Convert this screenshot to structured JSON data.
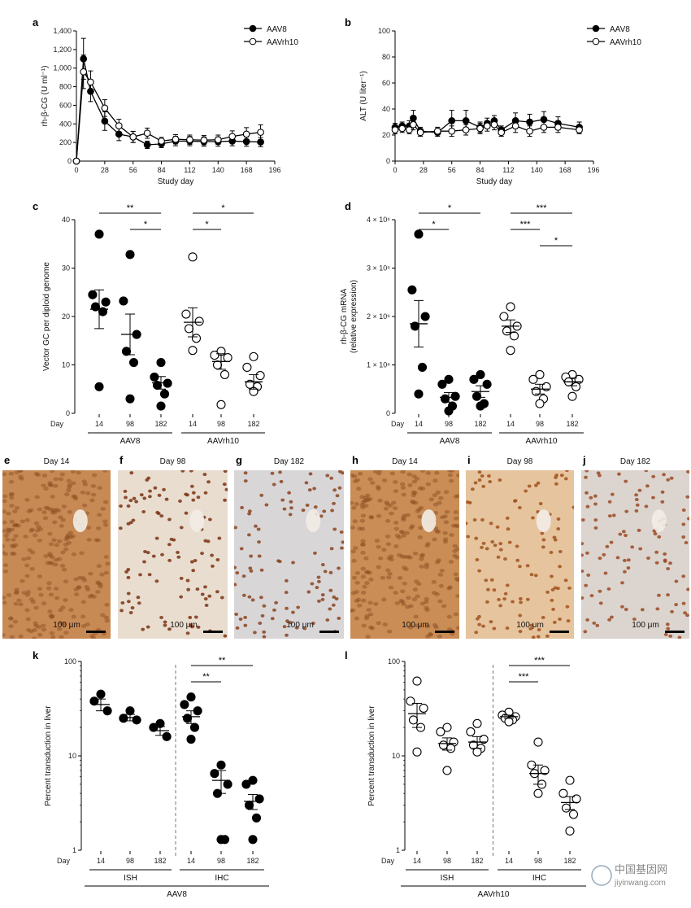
{
  "chart_data": [
    {
      "panel": "a",
      "type": "line",
      "ylabel": "rh-β-CG (U ml⁻¹)",
      "xlabel": "Study day",
      "xlim": [
        0,
        196
      ],
      "ylim": [
        0,
        1400
      ],
      "xticks": [
        0,
        28,
        56,
        84,
        112,
        140,
        168,
        196
      ],
      "yticks": [
        0,
        200,
        400,
        600,
        800,
        1000,
        1200,
        1400
      ],
      "ytick_labels": [
        "0",
        "200",
        "400",
        "600",
        "800",
        "1,000",
        "1,200",
        "1,400"
      ],
      "legend_position": "top-right",
      "series": [
        {
          "name": "AAV8",
          "marker": "filled",
          "x": [
            0,
            7,
            14,
            28,
            42,
            56,
            70,
            84,
            98,
            112,
            126,
            140,
            154,
            168,
            182
          ],
          "y": [
            0,
            1100,
            750,
            430,
            290,
            260,
            175,
            185,
            215,
            215,
            210,
            210,
            215,
            210,
            205
          ],
          "err": [
            0,
            220,
            110,
            100,
            70,
            60,
            40,
            40,
            50,
            50,
            50,
            50,
            50,
            50,
            50
          ]
        },
        {
          "name": "AAVrh10",
          "marker": "open",
          "x": [
            0,
            7,
            14,
            28,
            42,
            56,
            70,
            84,
            98,
            112,
            126,
            140,
            154,
            168,
            182
          ],
          "y": [
            0,
            960,
            850,
            570,
            380,
            260,
            300,
            215,
            235,
            230,
            225,
            230,
            265,
            290,
            310
          ],
          "err": [
            0,
            180,
            120,
            90,
            70,
            60,
            55,
            40,
            50,
            50,
            50,
            50,
            60,
            70,
            80
          ]
        }
      ]
    },
    {
      "panel": "b",
      "type": "line",
      "ylabel": "ALT (U liter⁻¹)",
      "xlabel": "Study day",
      "xlim": [
        0,
        196
      ],
      "ylim": [
        0,
        100
      ],
      "xticks": [
        0,
        28,
        56,
        84,
        112,
        140,
        168,
        196
      ],
      "yticks": [
        0,
        20,
        40,
        60,
        80,
        100
      ],
      "legend_position": "top-right",
      "series": [
        {
          "name": "AAV8",
          "marker": "filled",
          "x": [
            0,
            7,
            14,
            18,
            25,
            42,
            56,
            70,
            84,
            91,
            98,
            105,
            119,
            133,
            147,
            161,
            182
          ],
          "y": [
            26,
            27,
            27,
            33,
            23,
            22,
            31,
            31,
            26,
            29,
            31,
            24,
            31,
            30,
            32,
            29,
            26
          ],
          "err": [
            3,
            3,
            4,
            6,
            3,
            3,
            8,
            8,
            4,
            4,
            4,
            3,
            6,
            6,
            6,
            5,
            4
          ]
        },
        {
          "name": "AAVrh10",
          "marker": "open",
          "x": [
            0,
            7,
            14,
            18,
            25,
            42,
            56,
            70,
            84,
            91,
            98,
            105,
            119,
            133,
            147,
            161,
            182
          ],
          "y": [
            24,
            25,
            24,
            28,
            22,
            23,
            23,
            24,
            25,
            27,
            28,
            22,
            27,
            23,
            26,
            26,
            24
          ],
          "err": [
            3,
            3,
            3,
            4,
            3,
            3,
            4,
            4,
            4,
            4,
            4,
            3,
            5,
            4,
            4,
            4,
            3
          ]
        }
      ]
    },
    {
      "panel": "c",
      "type": "scatter",
      "ylabel": "Vector GC per diploid genome",
      "ylim": [
        0,
        40
      ],
      "yticks": [
        0,
        10,
        20,
        30,
        40
      ],
      "row_label": "Day",
      "categories": [
        "14",
        "98",
        "182",
        "14",
        "98",
        "182"
      ],
      "groups": [
        {
          "label": "AAV8",
          "from": 0,
          "to": 2
        },
        {
          "label": "AAVrh10",
          "from": 3,
          "to": 5
        }
      ],
      "filled": [
        true,
        true,
        true,
        false,
        false,
        false
      ],
      "points": [
        [
          37,
          24.5,
          23,
          22,
          21,
          5.5
        ],
        [
          32.8,
          23.2,
          16.3,
          12.8,
          10.5,
          3.0
        ],
        [
          10.5,
          7.5,
          6.2,
          5.8,
          4.0,
          1.5
        ],
        [
          32.3,
          20.5,
          19.0,
          17.5,
          15.5,
          13.0
        ],
        [
          12.8,
          12.0,
          11.5,
          10.0,
          8.0,
          1.8
        ],
        [
          11.7,
          9.5,
          7.8,
          6.0,
          5.5,
          4.5
        ]
      ],
      "mean": [
        21.5,
        16.3,
        6.3,
        18.8,
        10.7,
        6.5
      ],
      "sem": [
        4.0,
        4.2,
        1.3,
        3.0,
        1.6,
        1.5
      ],
      "significance": [
        {
          "from": 0,
          "to": 2,
          "label": "**",
          "level": 0
        },
        {
          "from": 1,
          "to": 2,
          "label": "*",
          "level": 1
        },
        {
          "from": 3,
          "to": 5,
          "label": "*",
          "level": 0
        },
        {
          "from": 3,
          "to": 4,
          "label": "*",
          "level": 1
        }
      ]
    },
    {
      "panel": "d",
      "type": "scatter",
      "ylabel": "rh-β-CG mRNA\n(relative expression)",
      "ylim": [
        0,
        4000000
      ],
      "yticks": [
        0,
        1000000,
        2000000,
        3000000,
        4000000
      ],
      "ytick_labels": [
        "0",
        "1 × 10⁶",
        "2 × 10⁶",
        "3 × 10⁶",
        "4 × 10⁶"
      ],
      "row_label": "Day",
      "categories": [
        "14",
        "98",
        "182",
        "14",
        "98",
        "182"
      ],
      "groups": [
        {
          "label": "AAV8",
          "from": 0,
          "to": 2
        },
        {
          "label": "AAVrh10",
          "from": 3,
          "to": 5
        }
      ],
      "filled": [
        true,
        true,
        true,
        false,
        false,
        false
      ],
      "points": [
        [
          3700000,
          2550000,
          2000000,
          1800000,
          950000,
          400000
        ],
        [
          700000,
          600000,
          350000,
          300000,
          150000,
          50000
        ],
        [
          800000,
          700000,
          600000,
          350000,
          200000,
          150000
        ],
        [
          2200000,
          2000000,
          1800000,
          1700000,
          1600000,
          1300000
        ],
        [
          800000,
          700000,
          550000,
          450000,
          300000,
          200000
        ],
        [
          800000,
          750000,
          700000,
          650000,
          550000,
          350000
        ]
      ],
      "mean": [
        1850000,
        330000,
        450000,
        1800000,
        500000,
        650000
      ],
      "sem": [
        480000,
        100000,
        120000,
        130000,
        100000,
        80000
      ],
      "significance": [
        {
          "from": 0,
          "to": 2,
          "label": "*",
          "level": 0
        },
        {
          "from": 0,
          "to": 1,
          "label": "*",
          "level": 1
        },
        {
          "from": 3,
          "to": 5,
          "label": "***",
          "level": 0
        },
        {
          "from": 3,
          "to": 4,
          "label": "***",
          "level": 1
        },
        {
          "from": 4,
          "to": 5,
          "label": "*",
          "level": 2
        }
      ]
    },
    {
      "panel": "k",
      "type": "scatter",
      "ylabel": "Percent transduction in liver",
      "yscale": "log",
      "ylim": [
        1,
        100
      ],
      "yticks": [
        1,
        10,
        100
      ],
      "row_label": "Day",
      "categories": [
        "14",
        "98",
        "182",
        "14",
        "98",
        "182"
      ],
      "subgroups": [
        {
          "label": "ISH",
          "from": 0,
          "to": 2
        },
        {
          "label": "IHC",
          "from": 3,
          "to": 5
        }
      ],
      "group_label": "AAV8",
      "divider_after": 2,
      "filled": [
        true,
        true,
        true,
        true,
        true,
        true
      ],
      "points": [
        [
          45,
          38,
          30
        ],
        [
          30,
          25,
          24
        ],
        [
          22,
          20,
          16
        ],
        [
          42,
          35,
          30,
          25,
          20,
          15
        ],
        [
          8,
          6.5,
          5,
          4,
          1.3,
          1.3
        ],
        [
          5.5,
          5,
          3.5,
          3,
          2.2,
          1.3
        ]
      ],
      "mean": [
        35,
        25.5,
        18.5,
        26,
        5.5,
        3.3
      ],
      "sem": [
        5,
        2,
        2,
        4,
        1.5,
        0.6
      ],
      "significance": [
        {
          "from": 3,
          "to": 5,
          "label": "**",
          "level": 0
        },
        {
          "from": 3,
          "to": 4,
          "label": "**",
          "level": 1
        }
      ]
    },
    {
      "panel": "l",
      "type": "scatter",
      "ylabel": "Percent transduction in liver",
      "yscale": "log",
      "ylim": [
        1,
        100
      ],
      "yticks": [
        1,
        10,
        100
      ],
      "row_label": "Day",
      "categories": [
        "14",
        "98",
        "182",
        "14",
        "98",
        "182"
      ],
      "subgroups": [
        {
          "label": "ISH",
          "from": 0,
          "to": 2
        },
        {
          "label": "IHC",
          "from": 3,
          "to": 5
        }
      ],
      "group_label": "AAVrh10",
      "divider_after": 2,
      "filled": [
        false,
        false,
        false,
        false,
        false,
        false
      ],
      "points": [
        [
          62,
          38,
          32,
          24,
          20,
          11
        ],
        [
          20,
          18,
          14,
          13,
          12,
          7
        ],
        [
          22,
          18,
          15,
          13,
          12,
          11
        ],
        [
          29,
          27,
          26,
          25,
          24,
          23
        ],
        [
          14,
          8,
          7,
          6.5,
          5,
          4
        ],
        [
          5.5,
          4,
          3.5,
          2.8,
          2.4,
          1.6
        ]
      ],
      "mean": [
        28,
        13.5,
        14,
        26,
        6.5,
        3.2
      ],
      "sem": [
        8,
        2,
        2,
        1,
        1.5,
        0.5
      ],
      "significance": [
        {
          "from": 3,
          "to": 5,
          "label": "***",
          "level": 0
        },
        {
          "from": 3,
          "to": 4,
          "label": "***",
          "level": 1
        }
      ]
    }
  ],
  "panel_letters": {
    "a": "a",
    "b": "b",
    "c": "c",
    "d": "d",
    "e": "e",
    "f": "f",
    "g": "g",
    "h": "h",
    "i": "i",
    "j": "j",
    "k": "k",
    "l": "l"
  },
  "images": [
    {
      "letter": "e",
      "title": "Day 14",
      "scale": "100 μm",
      "base": "#c88a55",
      "dense": true,
      "spot": "#8a4a1e"
    },
    {
      "letter": "f",
      "title": "Day 98",
      "scale": "100 μm",
      "base": "#e9ddd0",
      "dense": false,
      "spot": "#7a3414"
    },
    {
      "letter": "g",
      "title": "Day 182",
      "scale": "100 μm",
      "base": "#d9d6d8",
      "dense": false,
      "spot": "#8a4420"
    },
    {
      "letter": "h",
      "title": "Day 14",
      "scale": "100 μm",
      "base": "#c98d55",
      "dense": true,
      "spot": "#8a4a1e"
    },
    {
      "letter": "i",
      "title": "Day 98",
      "scale": "100 μm",
      "base": "#e6c49e",
      "dense": false,
      "spot": "#a0521e"
    },
    {
      "letter": "j",
      "title": "Day 182",
      "scale": "100 μm",
      "base": "#dcd4cf",
      "dense": false,
      "spot": "#9a4a22"
    }
  ],
  "watermark": {
    "cn": "中国基因网",
    "url": "jiyinwang.com"
  }
}
